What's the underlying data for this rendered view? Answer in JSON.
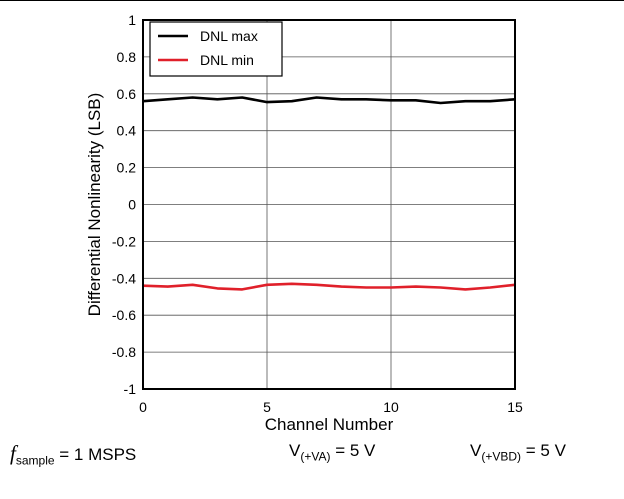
{
  "chart_data": {
    "type": "line",
    "title": "",
    "xlabel": "Channel Number",
    "ylabel": "Differential Nonlinearity (LSB)",
    "xlim": [
      0,
      15
    ],
    "ylim": [
      -1,
      1
    ],
    "xticks": [
      "0",
      "5",
      "10",
      "15"
    ],
    "yticks": [
      "1",
      "0.8",
      "0.6",
      "0.4",
      "0.2",
      "0",
      "-0.2",
      "-0.4",
      "-0.6",
      "-0.8",
      "-1"
    ],
    "grid": true,
    "legend_position": "top-left",
    "x": [
      0,
      1,
      2,
      3,
      4,
      5,
      6,
      7,
      8,
      9,
      10,
      11,
      12,
      13,
      14,
      15
    ],
    "series": [
      {
        "name": "DNL max",
        "color": "#000000",
        "values": [
          0.56,
          0.57,
          0.58,
          0.57,
          0.58,
          0.555,
          0.56,
          0.58,
          0.57,
          0.57,
          0.565,
          0.565,
          0.55,
          0.56,
          0.56,
          0.57
        ]
      },
      {
        "name": "DNL min",
        "color": "#e0202a",
        "values": [
          -0.44,
          -0.445,
          -0.435,
          -0.455,
          -0.46,
          -0.435,
          -0.43,
          -0.435,
          -0.445,
          -0.45,
          -0.45,
          -0.445,
          -0.45,
          -0.46,
          -0.45,
          -0.435
        ]
      }
    ]
  },
  "conditions": {
    "f_symbol": "f",
    "f_sub": "sample",
    "f_value": " = 1 MSPS",
    "va_base": "V",
    "va_sub": "(+VA)",
    "va_value": " = 5 V",
    "vbd_base": "V",
    "vbd_sub": "(+VBD)",
    "vbd_value": " = 5 V"
  }
}
